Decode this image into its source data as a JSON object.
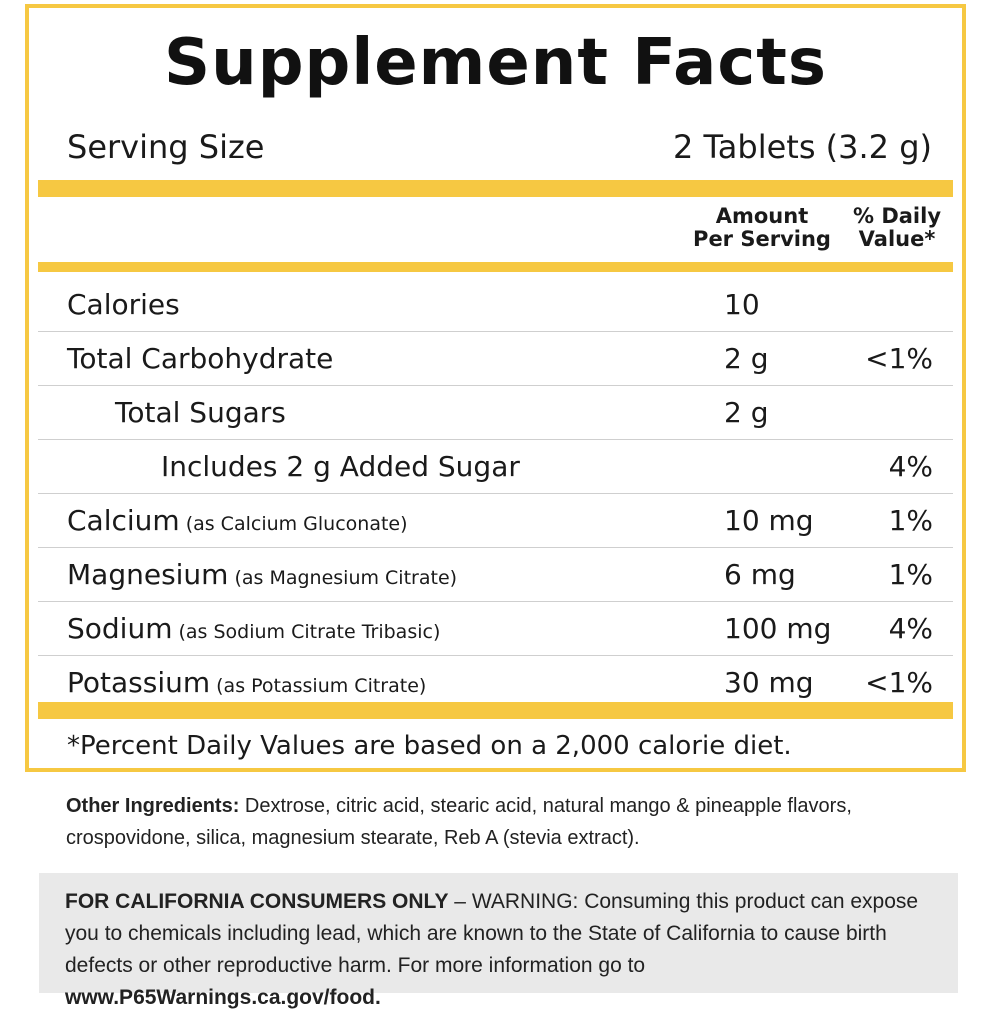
{
  "title": "Supplement Facts",
  "serving": {
    "label": "Serving Size",
    "value": "2 Tablets (3.2 g)"
  },
  "header": {
    "amount_line1": "Amount",
    "amount_line2": "Per Serving",
    "dv_line1": "% Daily",
    "dv_line2": "Value*"
  },
  "rows": [
    {
      "name": "Calories",
      "sub": "",
      "amount": "10",
      "dv": ""
    },
    {
      "name": "Total Carbohydrate",
      "sub": "",
      "amount": "2 g",
      "dv": "<1%"
    },
    {
      "name": "Total Sugars",
      "sub": "",
      "amount": "2 g",
      "dv": ""
    },
    {
      "name": "Includes 2 g Added Sugar",
      "sub": "",
      "amount": "",
      "dv": "4%"
    },
    {
      "name": "Calcium",
      "sub": "(as Calcium Gluconate)",
      "amount": "10 mg",
      "dv": "1%"
    },
    {
      "name": "Magnesium",
      "sub": "(as Magnesium Citrate)",
      "amount": "6 mg",
      "dv": "1%"
    },
    {
      "name": "Sodium",
      "sub": "(as Sodium Citrate Tribasic)",
      "amount": "100 mg",
      "dv": "4%"
    },
    {
      "name": "Potassium",
      "sub": "(as Potassium Citrate)",
      "amount": "30 mg",
      "dv": "<1%"
    }
  ],
  "footnote": "*Percent Daily Values are based on a 2,000 calorie diet.",
  "ingredients": {
    "label": "Other Ingredients:",
    "text": " Dextrose, citric acid, stearic acid, natural mango & pineapple flavors, crospovidone, silica, magnesium stearate, Reb A (stevia extract)."
  },
  "warning": {
    "bold_prefix": "FOR CALIFORNIA CONSUMERS ONLY",
    "text": " – WARNING: Consuming this product can expose you to chemicals including lead, which are known to the State of California to cause birth defects or other reproductive harm. For more information go to ",
    "link": "www.P65Warnings.ca.gov/food."
  },
  "colors": {
    "accent": "#f6c842",
    "warning_bg": "#e9e9e9",
    "divider": "#cfcfcf"
  }
}
